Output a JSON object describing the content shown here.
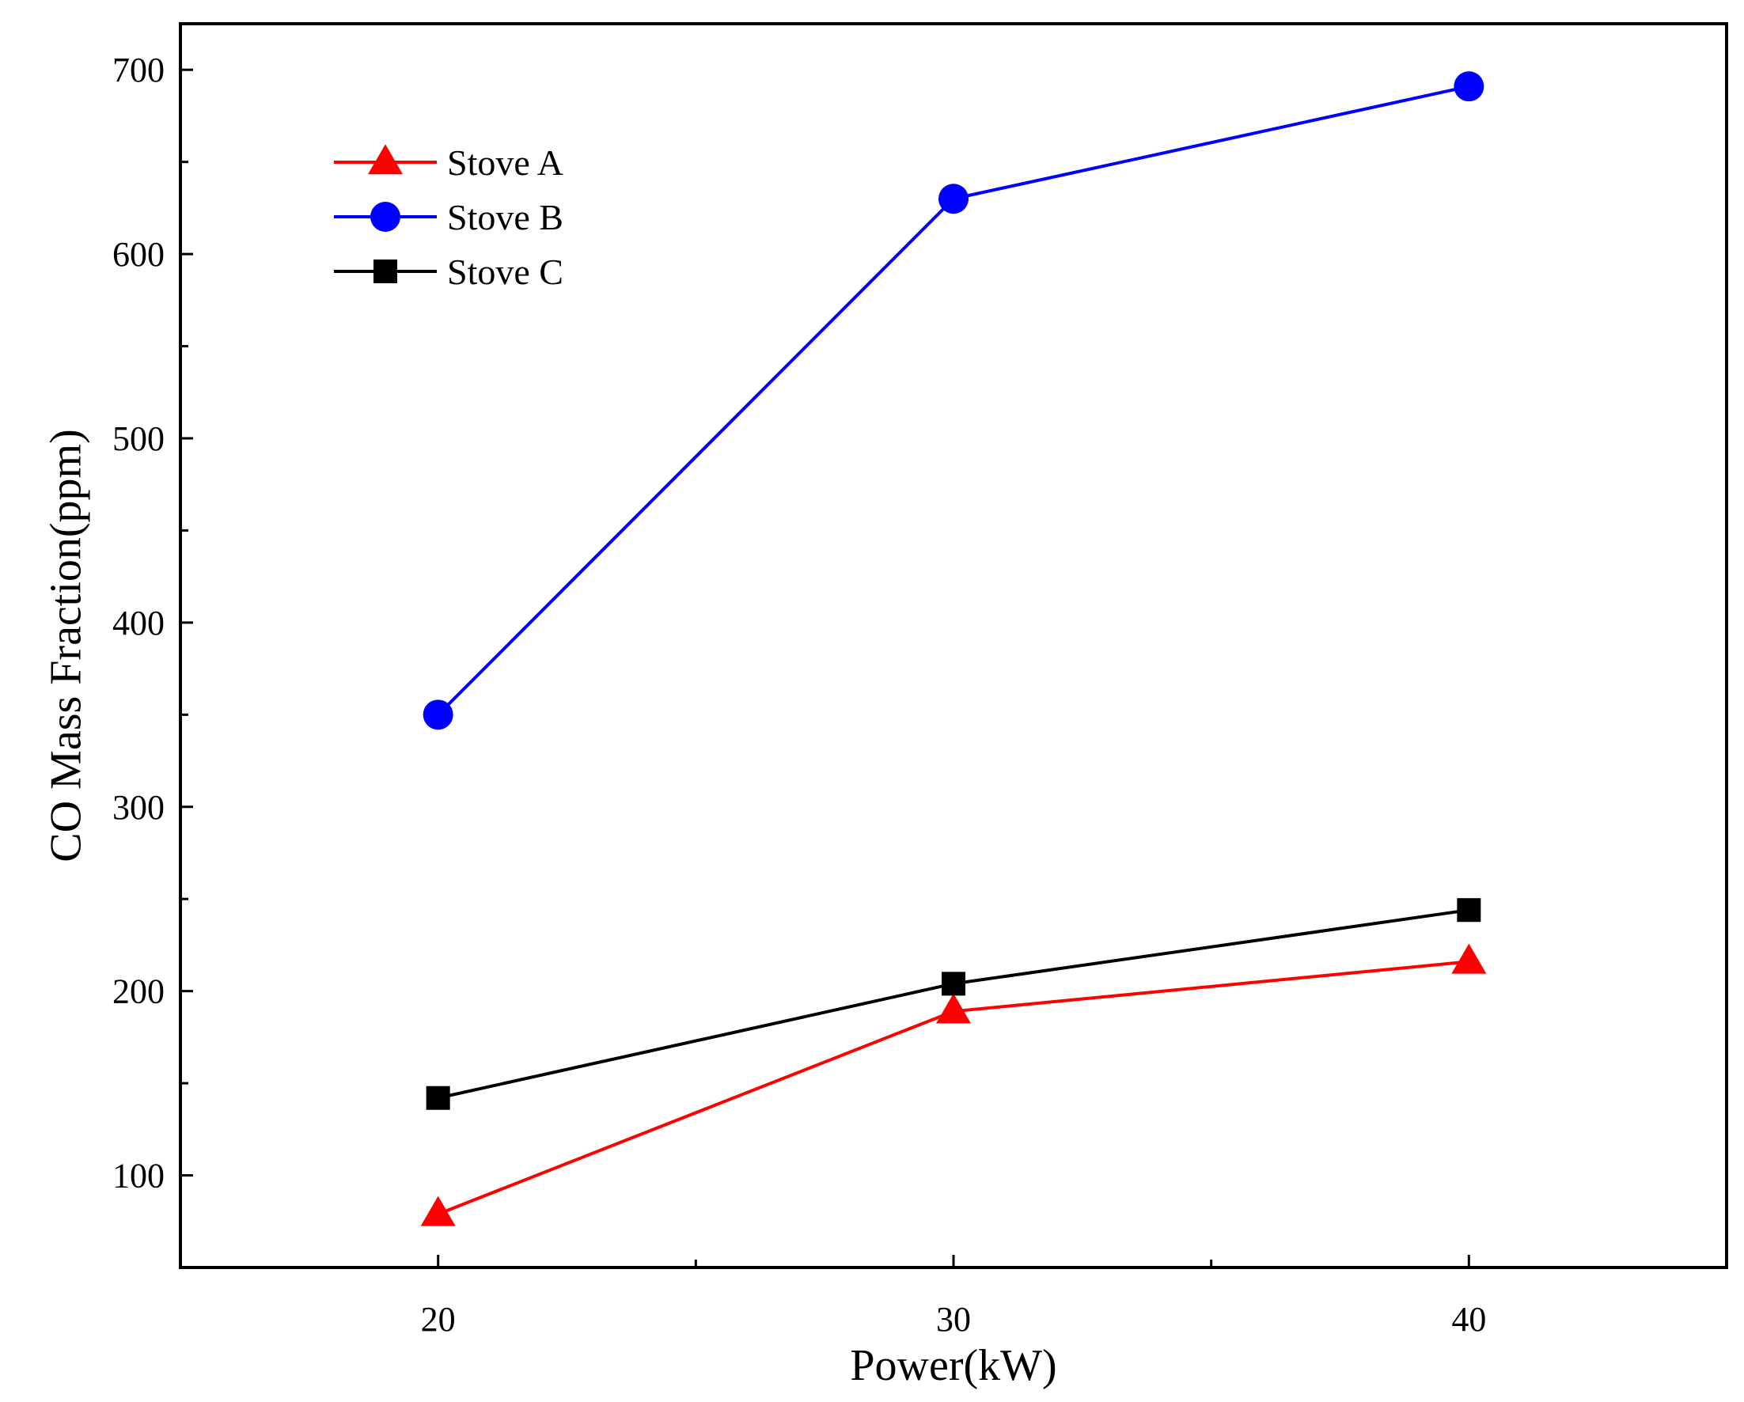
{
  "chart_data": {
    "type": "line",
    "title": "",
    "xlabel": "Power(kW)",
    "ylabel": "CO Mass Fraction(ppm)",
    "x": [
      20,
      30,
      40
    ],
    "xlim": [
      15,
      45
    ],
    "ylim": [
      50,
      725
    ],
    "xticks": [
      20,
      30,
      40
    ],
    "xminor_ticks": [
      25,
      35
    ],
    "yticks": [
      100,
      200,
      300,
      400,
      500,
      600,
      700
    ],
    "yminor_ticks": [
      150,
      250,
      350,
      450,
      550,
      650
    ],
    "grid": false,
    "legend_position": "top-left",
    "series": [
      {
        "name": "Stove A",
        "values": [
          79,
          189,
          216
        ],
        "color": "#ff0000",
        "marker": "triangle"
      },
      {
        "name": "Stove B",
        "values": [
          350,
          630,
          691
        ],
        "color": "#0000ff",
        "marker": "circle"
      },
      {
        "name": "Stove C",
        "values": [
          142,
          204,
          244
        ],
        "color": "#000000",
        "marker": "square"
      }
    ]
  }
}
